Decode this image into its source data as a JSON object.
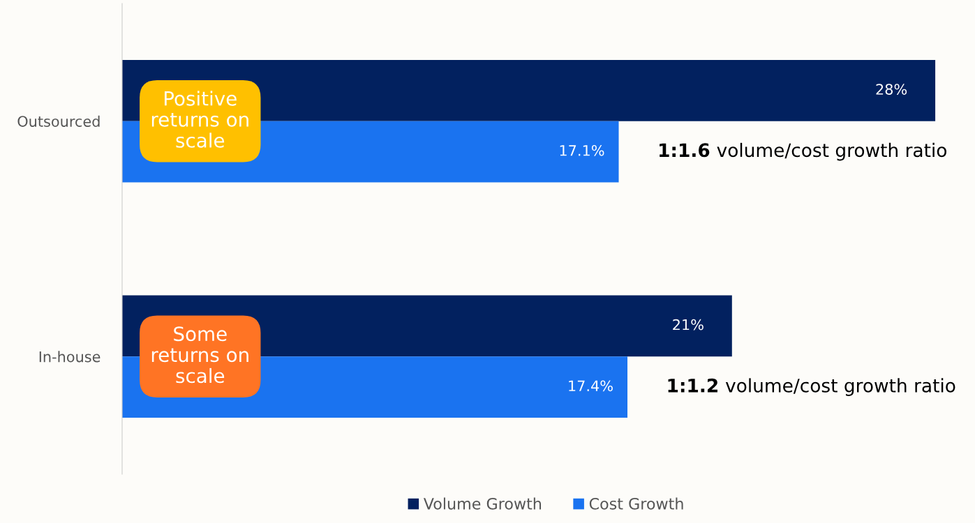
{
  "chart_data": {
    "type": "bar",
    "orientation": "horizontal",
    "categories": [
      "Outsourced",
      "In-house"
    ],
    "series": [
      {
        "name": "Volume Growth",
        "color": "#02215f",
        "values": [
          28,
          21
        ],
        "value_labels": [
          "28%",
          "21%"
        ]
      },
      {
        "name": "Cost Growth",
        "color": "#1a73f0",
        "values": [
          17.1,
          17.4
        ],
        "value_labels": [
          "17.1%",
          "17.4%"
        ]
      }
    ],
    "xlim": [
      0,
      29.2
    ],
    "tick_labels": "y",
    "legend": "bottom",
    "grid": false,
    "annotations": [
      "Positive\nreturns on\nscale",
      "Some\nreturns on\nscale",
      "1:1.6 volume/cost growth ratio",
      "1:1.2 volume/cost growth ratio"
    ]
  }
}
